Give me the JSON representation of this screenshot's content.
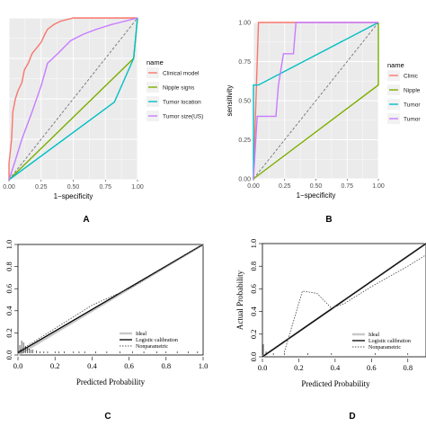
{
  "chart_data": [
    {
      "panel": "A",
      "type": "line",
      "xlabel": "1−specificity",
      "ylabel": "",
      "xlim": [
        0,
        1
      ],
      "ylim": [
        0,
        1
      ],
      "x_ticks": [
        "0.00",
        "0.25",
        "0.50",
        "0.75",
        "1.00"
      ],
      "grid": true,
      "legend_title": "name",
      "legend_position": "right",
      "series": [
        {
          "name": "Clinical model",
          "color": "#F8766D",
          "points": [
            [
              0,
              0
            ],
            [
              0,
              0.1
            ],
            [
              0.02,
              0.25
            ],
            [
              0.03,
              0.42
            ],
            [
              0.05,
              0.5
            ],
            [
              0.07,
              0.55
            ],
            [
              0.1,
              0.6
            ],
            [
              0.12,
              0.68
            ],
            [
              0.15,
              0.72
            ],
            [
              0.18,
              0.78
            ],
            [
              0.22,
              0.82
            ],
            [
              0.25,
              0.85
            ],
            [
              0.28,
              0.9
            ],
            [
              0.3,
              0.93
            ],
            [
              0.35,
              0.96
            ],
            [
              0.4,
              0.98
            ],
            [
              0.5,
              1
            ],
            [
              1,
              1
            ]
          ]
        },
        {
          "name": "Nipple signs",
          "color": "#7CAE00",
          "points": [
            [
              0,
              0
            ],
            [
              0.97,
              0.75
            ],
            [
              1,
              1
            ]
          ]
        },
        {
          "name": "Tumor location",
          "color": "#00BFC4",
          "points": [
            [
              0,
              0
            ],
            [
              0.82,
              0.48
            ],
            [
              0.97,
              0.75
            ],
            [
              1,
              1
            ]
          ]
        },
        {
          "name": "Tumor size(US)",
          "color": "#C77CFF",
          "points": [
            [
              0,
              0
            ],
            [
              0.05,
              0.12
            ],
            [
              0.1,
              0.25
            ],
            [
              0.18,
              0.42
            ],
            [
              0.25,
              0.58
            ],
            [
              0.3,
              0.72
            ],
            [
              0.38,
              0.78
            ],
            [
              0.48,
              0.86
            ],
            [
              0.58,
              0.9
            ],
            [
              0.68,
              0.93
            ],
            [
              0.8,
              0.96
            ],
            [
              1,
              1
            ]
          ]
        }
      ]
    },
    {
      "panel": "B",
      "type": "line",
      "xlabel": "1−specificity",
      "ylabel": "sensitivity",
      "xlim": [
        0,
        1
      ],
      "ylim": [
        0,
        1
      ],
      "x_ticks": [
        "0.00",
        "0.25",
        "0.50",
        "0.75",
        "1.00"
      ],
      "y_ticks": [
        "0.00",
        "0.25",
        "0.50",
        "0.75",
        "1.00"
      ],
      "grid": true,
      "legend_title": "name",
      "legend_position": "right",
      "series": [
        {
          "name": "Clinic",
          "color": "#F8766D",
          "points": [
            [
              0,
              0
            ],
            [
              0.04,
              1
            ],
            [
              1,
              1
            ]
          ]
        },
        {
          "name": "Nipple",
          "color": "#7CAE00",
          "points": [
            [
              0,
              0
            ],
            [
              1,
              0.6
            ],
            [
              1,
              1
            ]
          ]
        },
        {
          "name": "Tumor",
          "color": "#00BFC4",
          "points": [
            [
              0,
              0
            ],
            [
              0,
              0.6
            ],
            [
              0.04,
              0.6
            ],
            [
              1,
              1
            ]
          ]
        },
        {
          "name": "Tumor",
          "color": "#C77CFF",
          "points": [
            [
              0,
              0
            ],
            [
              0.03,
              0.4
            ],
            [
              0.18,
              0.4
            ],
            [
              0.2,
              0.6
            ],
            [
              0.24,
              0.8
            ],
            [
              0.32,
              0.8
            ],
            [
              0.34,
              1
            ],
            [
              1,
              1
            ]
          ]
        }
      ]
    },
    {
      "panel": "C",
      "type": "line",
      "xlabel": "Predicted Probability",
      "ylabel": "",
      "xlim": [
        0,
        1
      ],
      "ylim": [
        0,
        1
      ],
      "x_ticks": [
        "0.0",
        "0.2",
        "0.4",
        "0.6",
        "0.8",
        "1.0"
      ],
      "y_ticks": [
        "0.0",
        "0.2",
        "0.4",
        "0.6",
        "0.8",
        "1.0"
      ],
      "legend_position": "bottom-right",
      "series": [
        {
          "name": "Ideal",
          "color": "#c8c8c8",
          "points": [
            [
              0,
              0
            ],
            [
              1,
              1
            ]
          ]
        },
        {
          "name": "Logistic calibration",
          "color": "#000000",
          "points": [
            [
              0,
              0.02
            ],
            [
              1,
              1
            ]
          ]
        },
        {
          "name": "Nonparametric",
          "color": "#555555",
          "dashed": true,
          "points": [
            [
              0,
              0.03
            ],
            [
              0.2,
              0.24
            ],
            [
              0.4,
              0.45
            ],
            [
              0.6,
              0.6
            ],
            [
              0.8,
              0.8
            ],
            [
              1,
              1
            ]
          ]
        }
      ]
    },
    {
      "panel": "D",
      "type": "line",
      "xlabel": "Predicted Probability",
      "ylabel": "Actual Probability",
      "xlim": [
        0,
        1
      ],
      "ylim": [
        0,
        1
      ],
      "x_ticks": [
        "0.0",
        "0.2",
        "0.4",
        "0.6",
        "0.8"
      ],
      "y_ticks": [
        "0.0",
        "0.2",
        "0.4",
        "0.6",
        "0.8",
        "1.0"
      ],
      "legend_position": "bottom-right",
      "series": [
        {
          "name": "Ideal",
          "color": "#c8c8c8",
          "points": [
            [
              0,
              0
            ],
            [
              1,
              1
            ]
          ]
        },
        {
          "name": "Logistic calibration",
          "color": "#000000",
          "points": [
            [
              0,
              0
            ],
            [
              1,
              1
            ]
          ]
        },
        {
          "name": "Nonparametric",
          "color": "#555555",
          "dashed": true,
          "points": [
            [
              0.12,
              0.04
            ],
            [
              0.22,
              0.58
            ],
            [
              0.3,
              0.56
            ],
            [
              0.38,
              0.43
            ],
            [
              0.45,
              0.47
            ],
            [
              0.6,
              0.62
            ],
            [
              0.8,
              0.8
            ],
            [
              0.9,
              0.9
            ]
          ]
        }
      ]
    }
  ],
  "labels": {
    "A": "A",
    "B": "B",
    "C": "C",
    "D": "D"
  }
}
